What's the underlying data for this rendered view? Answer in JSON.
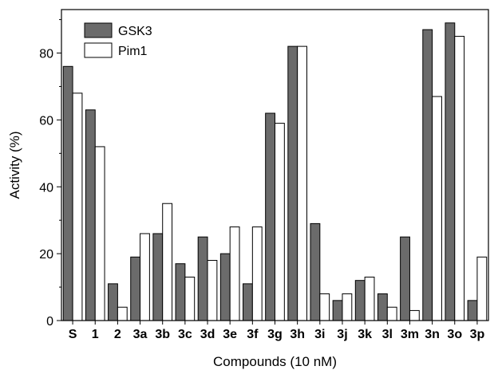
{
  "chart_data": {
    "type": "bar",
    "title": "",
    "xlabel": "Compounds (10 nM)",
    "ylabel": "Activity (%)",
    "ylim": [
      0,
      93
    ],
    "yticks": [
      0,
      20,
      40,
      60,
      80
    ],
    "grid": false,
    "legend_position": "top-left",
    "categories": [
      "S",
      "1",
      "2",
      "3a",
      "3b",
      "3c",
      "3d",
      "3e",
      "3f",
      "3g",
      "3h",
      "3i",
      "3j",
      "3k",
      "3l",
      "3m",
      "3n",
      "3o",
      "3p"
    ],
    "series": [
      {
        "name": "GSK3",
        "color": "#6b6b6b",
        "values": [
          76,
          63,
          11,
          19,
          26,
          17,
          25,
          20,
          11,
          62,
          82,
          29,
          6,
          12,
          8,
          25,
          87,
          89,
          6
        ]
      },
      {
        "name": "Pim1",
        "color": "#ffffff",
        "values": [
          68,
          52,
          4,
          26,
          35,
          13,
          18,
          28,
          28,
          59,
          82,
          8,
          8,
          13,
          4,
          3,
          67,
          85,
          19
        ]
      }
    ]
  }
}
